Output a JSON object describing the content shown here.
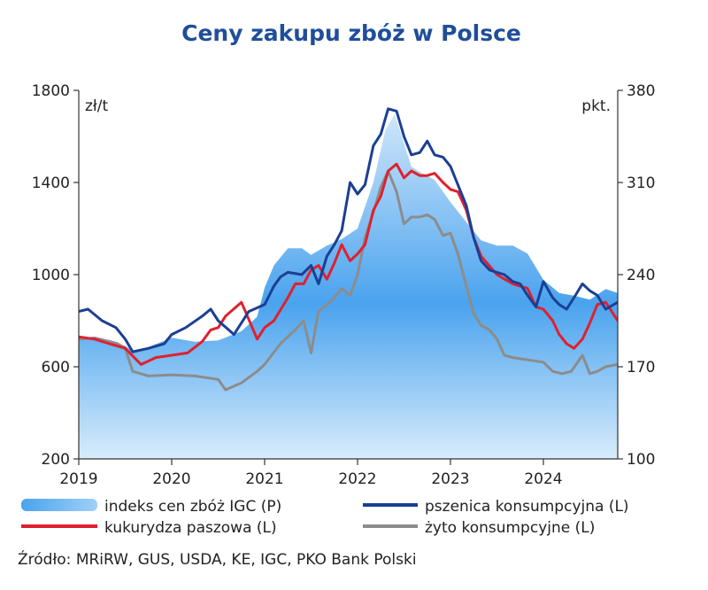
{
  "chart_data": {
    "type": "line",
    "title": "Ceny zakupu zbóż w Polsce",
    "left_axis": {
      "unit": "zł/t",
      "ylim": [
        200,
        1800
      ],
      "ticks": [
        200,
        600,
        1000,
        1400,
        1800
      ]
    },
    "right_axis": {
      "unit": "pkt.",
      "ylim": [
        100,
        380
      ],
      "ticks": [
        100,
        170,
        240,
        310,
        380
      ]
    },
    "x_axis": {
      "xlim": [
        2019.0,
        2024.8
      ],
      "ticks": [
        "2019",
        "2020",
        "2021",
        "2022",
        "2023",
        "2024"
      ],
      "tick_values": [
        2019,
        2020,
        2021,
        2022,
        2023,
        2024
      ]
    },
    "grid": false,
    "legend_position": "bottom",
    "source": "Źródło: MRiRW, GUS, USDA, KE, IGC, PKO Bank Polski",
    "series": [
      {
        "name": "indeks cen zbóż IGC (P)",
        "type": "area",
        "axis": "right",
        "color": "#5aaaf0",
        "x": [
          2019.0,
          2019.17,
          2019.33,
          2019.5,
          2019.58,
          2019.75,
          2020.0,
          2020.25,
          2020.5,
          2020.75,
          2020.92,
          2021.0,
          2021.1,
          2021.25,
          2021.4,
          2021.5,
          2021.67,
          2021.83,
          2022.0,
          2022.17,
          2022.3,
          2022.4,
          2022.5,
          2022.58,
          2022.67,
          2022.83,
          2023.0,
          2023.17,
          2023.33,
          2023.5,
          2023.67,
          2023.83,
          2024.0,
          2024.17,
          2024.33,
          2024.5,
          2024.67,
          2024.8
        ],
        "values": [
          193,
          191,
          188,
          186,
          182,
          185,
          192,
          189,
          190,
          197,
          208,
          230,
          247,
          260,
          260,
          255,
          262,
          267,
          275,
          310,
          350,
          362,
          340,
          322,
          318,
          312,
          295,
          280,
          266,
          262,
          262,
          256,
          236,
          226,
          224,
          221,
          229,
          226
        ]
      },
      {
        "name": "pszenica konsumpcyjna (L)",
        "type": "line",
        "axis": "left",
        "color": "#1b3f94",
        "x": [
          2019.0,
          2019.1,
          2019.25,
          2019.4,
          2019.5,
          2019.58,
          2019.75,
          2019.92,
          2020.0,
          2020.15,
          2020.33,
          2020.42,
          2020.5,
          2020.67,
          2020.83,
          2021.0,
          2021.1,
          2021.17,
          2021.25,
          2021.4,
          2021.5,
          2021.58,
          2021.67,
          2021.75,
          2021.83,
          2021.92,
          2022.0,
          2022.08,
          2022.17,
          2022.25,
          2022.33,
          2022.42,
          2022.5,
          2022.58,
          2022.67,
          2022.75,
          2022.83,
          2022.92,
          2023.0,
          2023.08,
          2023.17,
          2023.25,
          2023.33,
          2023.42,
          2023.5,
          2023.58,
          2023.67,
          2023.75,
          2023.83,
          2023.92,
          2024.0,
          2024.1,
          2024.17,
          2024.25,
          2024.33,
          2024.42,
          2024.5,
          2024.58,
          2024.67,
          2024.8
        ],
        "values": [
          840,
          850,
          800,
          770,
          720,
          665,
          680,
          700,
          740,
          770,
          820,
          850,
          800,
          740,
          840,
          870,
          950,
          990,
          1010,
          1000,
          1040,
          960,
          1080,
          1130,
          1190,
          1400,
          1350,
          1390,
          1560,
          1610,
          1720,
          1710,
          1600,
          1520,
          1530,
          1580,
          1520,
          1510,
          1470,
          1390,
          1300,
          1160,
          1060,
          1020,
          1010,
          1000,
          970,
          960,
          910,
          860,
          970,
          900,
          870,
          850,
          900,
          960,
          930,
          910,
          850,
          880
        ]
      },
      {
        "name": "kukurydza paszowa (L)",
        "type": "line",
        "axis": "left",
        "color": "#e0202e",
        "x": [
          2019.0,
          2019.17,
          2019.33,
          2019.5,
          2019.67,
          2019.83,
          2020.0,
          2020.17,
          2020.33,
          2020.42,
          2020.5,
          2020.58,
          2020.75,
          2020.92,
          2021.0,
          2021.1,
          2021.25,
          2021.33,
          2021.42,
          2021.5,
          2021.58,
          2021.67,
          2021.75,
          2021.83,
          2021.92,
          2022.0,
          2022.08,
          2022.17,
          2022.25,
          2022.33,
          2022.42,
          2022.5,
          2022.58,
          2022.67,
          2022.75,
          2022.83,
          2022.92,
          2023.0,
          2023.08,
          2023.17,
          2023.25,
          2023.33,
          2023.5,
          2023.67,
          2023.83,
          2023.92,
          2024.0,
          2024.1,
          2024.17,
          2024.25,
          2024.33,
          2024.42,
          2024.5,
          2024.58,
          2024.67,
          2024.8
        ],
        "values": [
          730,
          720,
          700,
          680,
          610,
          640,
          650,
          660,
          710,
          760,
          770,
          820,
          880,
          720,
          770,
          800,
          900,
          960,
          960,
          1020,
          1040,
          980,
          1050,
          1130,
          1060,
          1090,
          1130,
          1280,
          1340,
          1450,
          1480,
          1420,
          1450,
          1430,
          1430,
          1440,
          1400,
          1370,
          1360,
          1280,
          1160,
          1080,
          1000,
          960,
          940,
          860,
          850,
          800,
          740,
          700,
          680,
          720,
          790,
          870,
          880,
          800
        ]
      },
      {
        "name": "żyto konsumpcyjne (L)",
        "type": "line",
        "axis": "left",
        "color": "#8c8c8c",
        "x": [
          2019.0,
          2019.17,
          2019.33,
          2019.42,
          2019.5,
          2019.58,
          2019.75,
          2020.0,
          2020.25,
          2020.5,
          2020.58,
          2020.75,
          2020.92,
          2021.0,
          2021.17,
          2021.33,
          2021.42,
          2021.5,
          2021.58,
          2021.67,
          2021.75,
          2021.83,
          2021.92,
          2022.0,
          2022.08,
          2022.17,
          2022.25,
          2022.33,
          2022.42,
          2022.5,
          2022.58,
          2022.67,
          2022.75,
          2022.83,
          2022.92,
          2023.0,
          2023.08,
          2023.17,
          2023.25,
          2023.33,
          2023.42,
          2023.5,
          2023.58,
          2023.67,
          2023.83,
          2024.0,
          2024.1,
          2024.2,
          2024.3,
          2024.42,
          2024.5,
          2024.58,
          2024.67,
          2024.8
        ],
        "values": [
          720,
          725,
          710,
          700,
          680,
          580,
          560,
          565,
          560,
          545,
          500,
          530,
          580,
          610,
          700,
          760,
          800,
          660,
          840,
          870,
          900,
          940,
          910,
          1000,
          1160,
          1270,
          1380,
          1450,
          1360,
          1220,
          1250,
          1250,
          1260,
          1240,
          1170,
          1180,
          1090,
          950,
          830,
          780,
          760,
          720,
          650,
          640,
          630,
          620,
          580,
          570,
          580,
          650,
          570,
          580,
          600,
          610
        ]
      }
    ]
  }
}
